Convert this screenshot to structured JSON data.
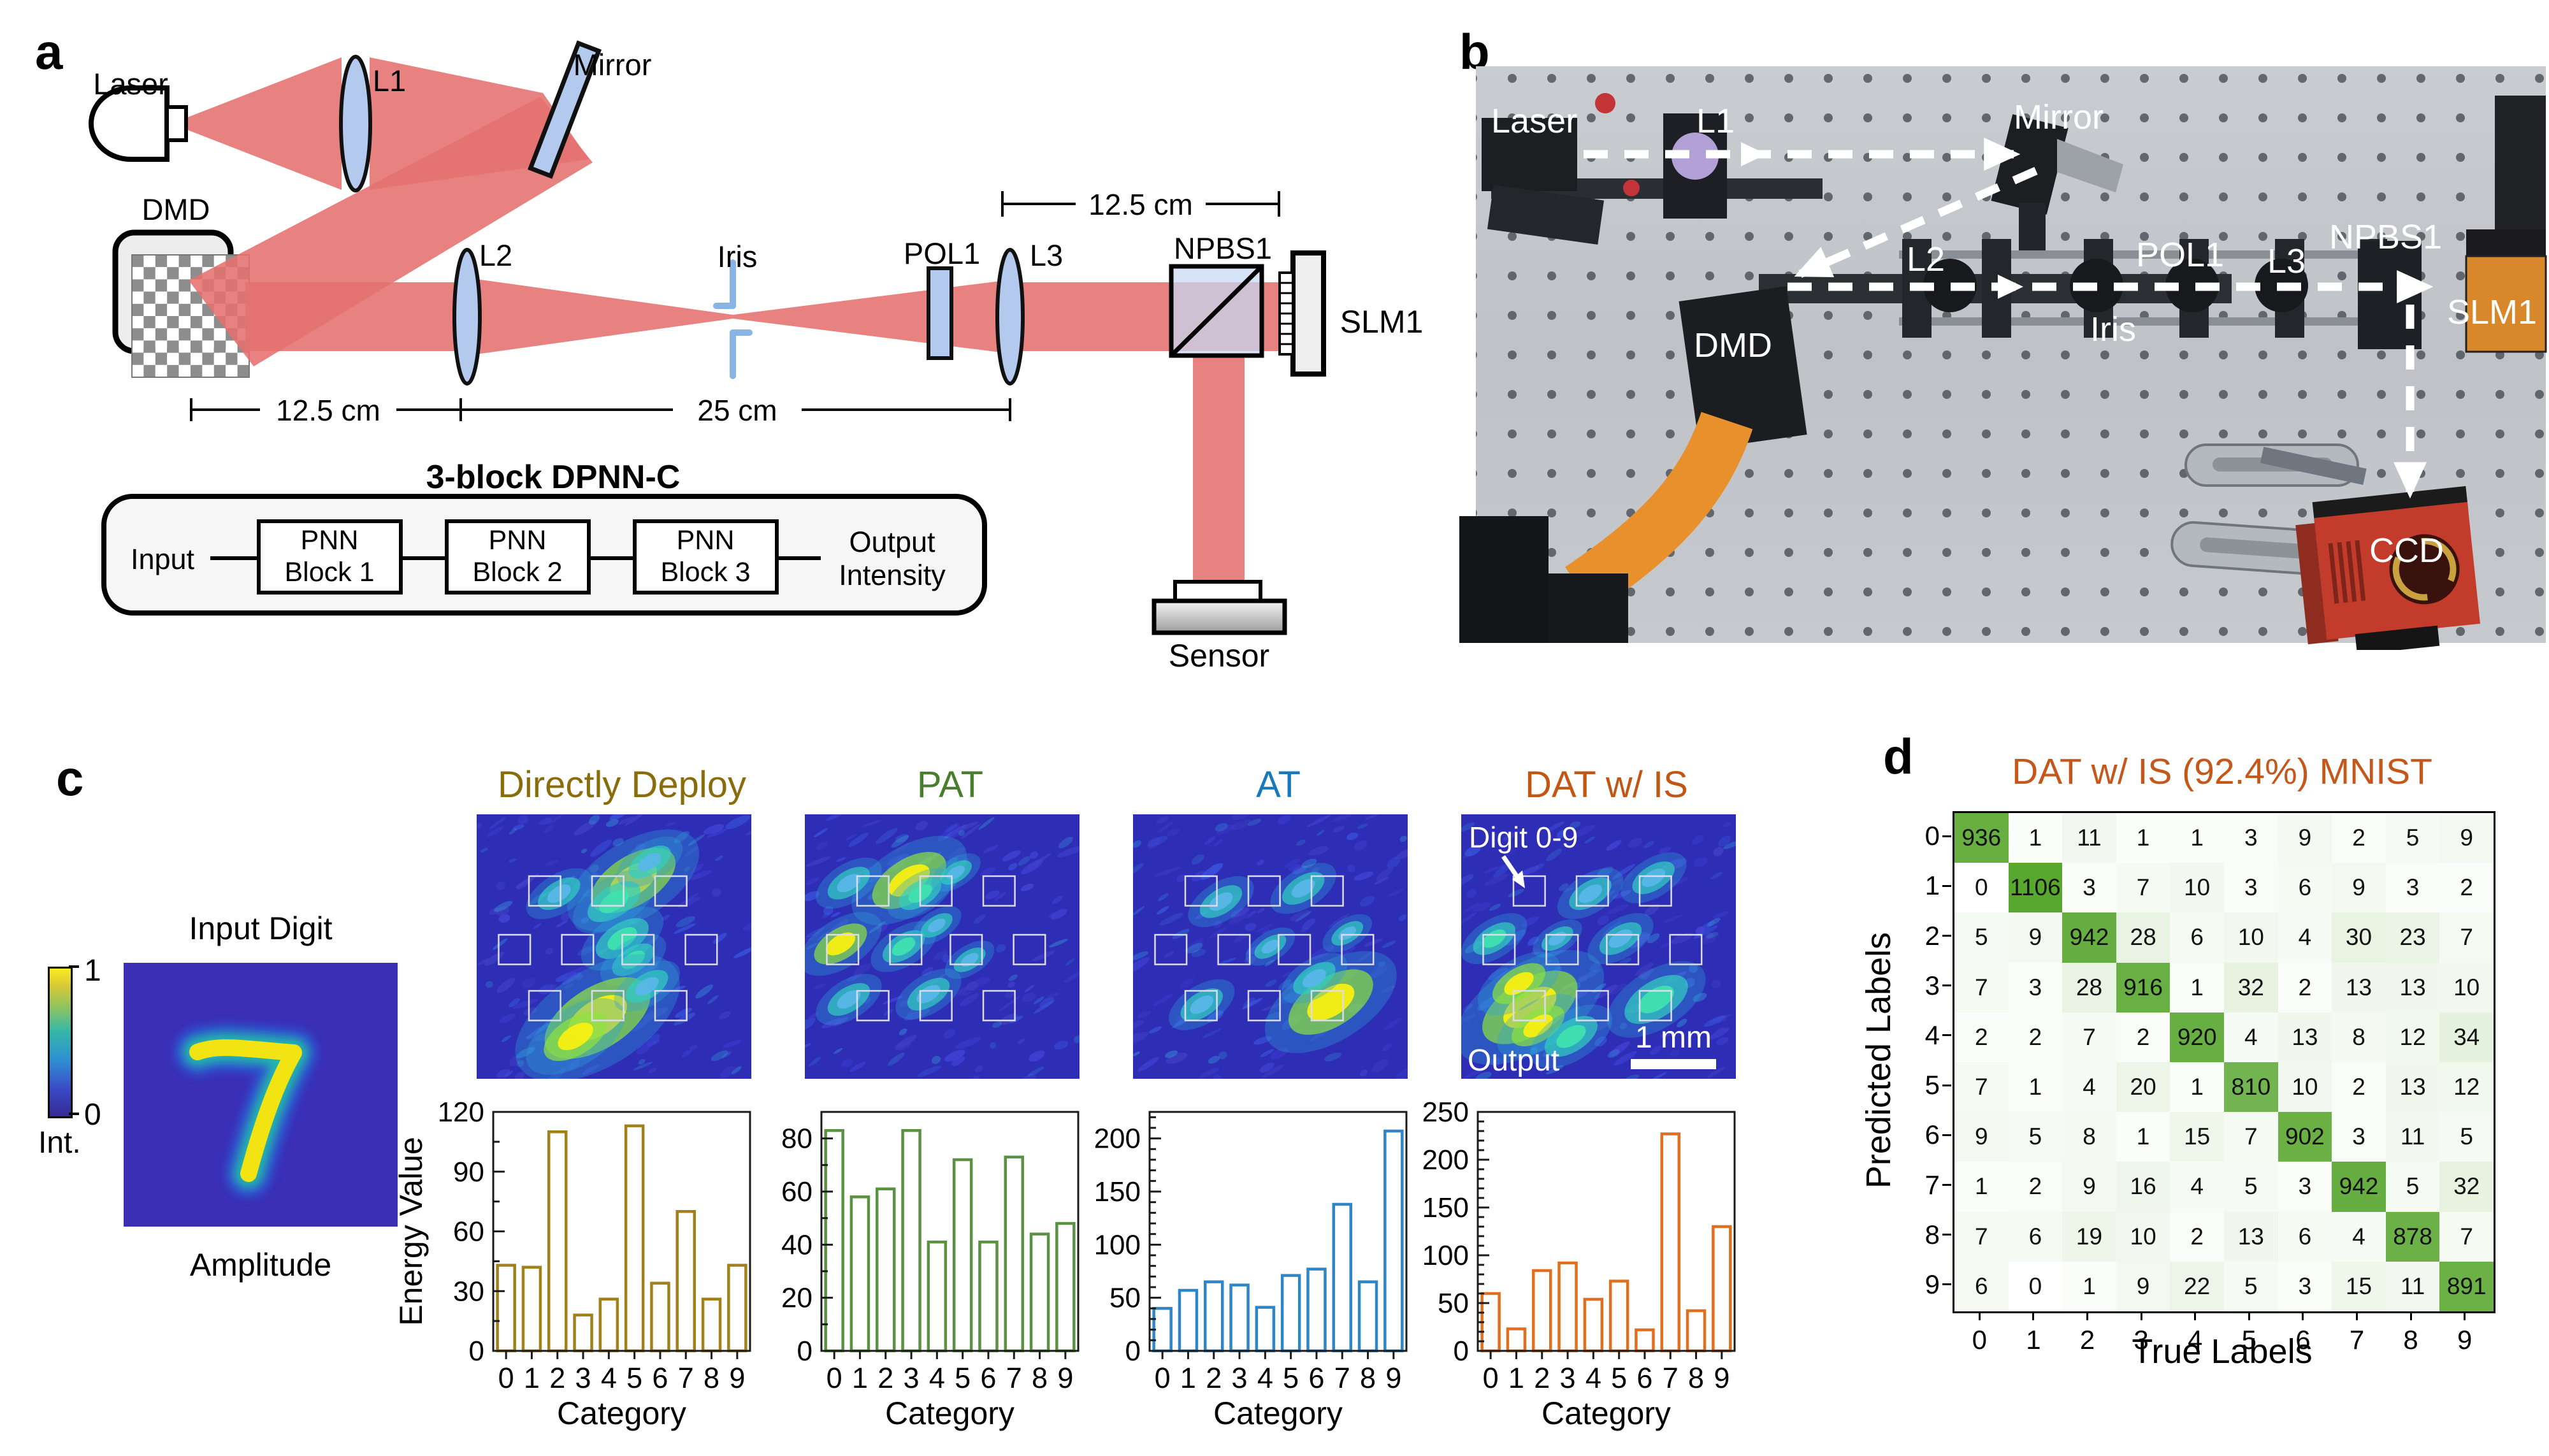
{
  "panel_a": {
    "label": "a",
    "component_labels": {
      "laser": "Laser",
      "l1": "L1",
      "mirror": "Mirror",
      "dmd": "DMD",
      "l2": "L2",
      "iris": "Iris",
      "pol1": "POL1",
      "l3": "L3",
      "npbs1": "NPBS1",
      "slm1": "SLM1",
      "sensor": "Sensor"
    },
    "dimensions": {
      "top_right": "12.5 cm",
      "bottom_left": "12.5 cm",
      "bottom_mid": "25 cm"
    },
    "dpnn": {
      "title": "3-block DPNN-C",
      "input": "Input",
      "blocks": [
        {
          "line1": "PNN",
          "line2": "Block 1"
        },
        {
          "line1": "PNN",
          "line2": "Block 2"
        },
        {
          "line1": "PNN",
          "line2": "Block 3"
        }
      ],
      "output_line1": "Output",
      "output_line2": "Intensity"
    },
    "beam_color": "#e4716f",
    "optic_fill": "#b3c9ee"
  },
  "panel_b": {
    "label": "b",
    "labels": {
      "laser": "Laser",
      "l1": "L1",
      "mirror": "Mirror",
      "l2": "L2",
      "pol1": "POL1",
      "l3": "L3",
      "npbs1": "NPBS1",
      "dmd": "DMD",
      "iris": "Iris",
      "slm1": "SLM1",
      "ccd": "CCD"
    }
  },
  "panel_c": {
    "label": "c",
    "colorbar": {
      "max": "1",
      "min": "0",
      "label": "Int."
    },
    "input": {
      "title": "Input Digit",
      "caption": "Amplitude",
      "digit": "7"
    },
    "annotations": {
      "digit_boxes": "Digit 0-9",
      "output": "Output",
      "scale_bar": "1 mm"
    }
  },
  "panel_d": {
    "label": "d"
  },
  "chart_data": [
    {
      "type": "bar",
      "id": "directly_deploy",
      "title": "Directly Deploy",
      "title_color": "#8a6d0b",
      "bar_color": "#a2801a",
      "categories": [
        "0",
        "1",
        "2",
        "3",
        "4",
        "5",
        "6",
        "7",
        "8",
        "9"
      ],
      "values": [
        43,
        42,
        110,
        18,
        26,
        113,
        34,
        70,
        26,
        43
      ],
      "xlabel": "Category",
      "ylabel": "Energy Value",
      "ylim": [
        0,
        120
      ],
      "yticks": [
        0,
        30,
        60,
        90,
        120
      ],
      "minor_step": 15,
      "speckle_hotspots": [
        {
          "x": 57,
          "y": 25,
          "r": 8,
          "i": 1
        },
        {
          "x": 50,
          "y": 33,
          "r": 5,
          "i": 0.75
        },
        {
          "x": 63,
          "y": 18,
          "r": 4,
          "i": 0.5
        },
        {
          "x": 53,
          "y": 47,
          "r": 5,
          "i": 0.7
        },
        {
          "x": 57,
          "y": 55,
          "r": 4,
          "i": 0.8
        },
        {
          "x": 44,
          "y": 77,
          "r": 10,
          "i": 1
        },
        {
          "x": 36,
          "y": 84,
          "r": 6,
          "i": 0.85
        },
        {
          "x": 30,
          "y": 30,
          "r": 4,
          "i": 0.3
        },
        {
          "x": 62,
          "y": 65,
          "r": 4,
          "i": 0.45
        }
      ]
    },
    {
      "type": "bar",
      "id": "pat",
      "title": "PAT",
      "title_color": "#4b7d2e",
      "bar_color": "#5b9142",
      "categories": [
        "0",
        "1",
        "2",
        "3",
        "4",
        "5",
        "6",
        "7",
        "8",
        "9"
      ],
      "values": [
        83,
        58,
        61,
        83,
        41,
        72,
        41,
        73,
        44,
        48
      ],
      "xlabel": "Category",
      "ylabel": "",
      "ylim": [
        0,
        90
      ],
      "yticks": [
        0,
        20,
        40,
        60,
        80
      ],
      "minor_step": 10,
      "speckle_hotspots": [
        {
          "x": 38,
          "y": 25,
          "r": 7,
          "i": 1
        },
        {
          "x": 42,
          "y": 30,
          "r": 4,
          "i": 0.7
        },
        {
          "x": 13,
          "y": 49,
          "r": 5,
          "i": 0.85
        },
        {
          "x": 36,
          "y": 50,
          "r": 4,
          "i": 0.6
        },
        {
          "x": 55,
          "y": 22,
          "r": 3,
          "i": 0.4
        },
        {
          "x": 16,
          "y": 26,
          "r": 4,
          "i": 0.45
        },
        {
          "x": 48,
          "y": 42,
          "r": 3,
          "i": 0.5
        },
        {
          "x": 16,
          "y": 70,
          "r": 4,
          "i": 0.4
        },
        {
          "x": 45,
          "y": 68,
          "r": 4,
          "i": 0.45
        },
        {
          "x": 60,
          "y": 55,
          "r": 3,
          "i": 0.35
        }
      ]
    },
    {
      "type": "bar",
      "id": "at",
      "title": "AT",
      "title_color": "#1878be",
      "bar_color": "#2e86c8",
      "categories": [
        "0",
        "1",
        "2",
        "3",
        "4",
        "5",
        "6",
        "7",
        "8",
        "9"
      ],
      "values": [
        40,
        57,
        65,
        62,
        41,
        71,
        77,
        138,
        65,
        207
      ],
      "xlabel": "Category",
      "ylabel": "",
      "ylim": [
        0,
        225
      ],
      "yticks": [
        0,
        50,
        100,
        150,
        200
      ],
      "minor_step": 10,
      "speckle_hotspots": [
        {
          "x": 72,
          "y": 71,
          "r": 8,
          "i": 0.95
        },
        {
          "x": 66,
          "y": 62,
          "r": 4,
          "i": 0.5
        },
        {
          "x": 62,
          "y": 28,
          "r": 4,
          "i": 0.4
        },
        {
          "x": 32,
          "y": 33,
          "r": 4,
          "i": 0.35
        },
        {
          "x": 25,
          "y": 72,
          "r": 4,
          "i": 0.4
        },
        {
          "x": 50,
          "y": 50,
          "r": 3,
          "i": 0.3
        },
        {
          "x": 78,
          "y": 45,
          "r": 3,
          "i": 0.3
        }
      ]
    },
    {
      "type": "bar",
      "id": "dat_is",
      "title": "DAT w/ IS",
      "title_color": "#c25715",
      "bar_color": "#e0701f",
      "categories": [
        "0",
        "1",
        "2",
        "3",
        "4",
        "5",
        "6",
        "7",
        "8",
        "9"
      ],
      "values": [
        60,
        23,
        84,
        92,
        54,
        73,
        22,
        227,
        42,
        130
      ],
      "xlabel": "Category",
      "ylabel": "",
      "ylim": [
        0,
        250
      ],
      "yticks": [
        0,
        50,
        100,
        150,
        200,
        250
      ],
      "minor_step": 10,
      "speckle_hotspots": [
        {
          "x": 25,
          "y": 73,
          "r": 9,
          "i": 1
        },
        {
          "x": 21,
          "y": 64,
          "r": 5,
          "i": 0.95
        },
        {
          "x": 28,
          "y": 80,
          "r": 5,
          "i": 0.9
        },
        {
          "x": 71,
          "y": 70,
          "r": 6,
          "i": 0.8
        },
        {
          "x": 12,
          "y": 47,
          "r": 4,
          "i": 0.75
        },
        {
          "x": 47,
          "y": 30,
          "r": 4,
          "i": 0.5
        },
        {
          "x": 70,
          "y": 24,
          "r": 4,
          "i": 0.5
        },
        {
          "x": 40,
          "y": 84,
          "r": 5,
          "i": 0.55
        },
        {
          "x": 58,
          "y": 47,
          "r": 4,
          "i": 0.5
        },
        {
          "x": 35,
          "y": 47,
          "r": 3,
          "i": 0.45
        }
      ]
    },
    {
      "type": "heatmap",
      "id": "confusion_matrix",
      "title": "DAT w/ IS (92.4%) MNIST",
      "title_color": "#c5571a",
      "xlabel": "True Labels",
      "ylabel": "Predicted Labels",
      "row_labels": [
        "0",
        "1",
        "2",
        "3",
        "4",
        "5",
        "6",
        "7",
        "8",
        "9"
      ],
      "col_labels": [
        "0",
        "1",
        "2",
        "3",
        "4",
        "5",
        "6",
        "7",
        "8",
        "9"
      ],
      "matrix": [
        [
          936,
          1,
          11,
          1,
          1,
          3,
          9,
          2,
          5,
          9
        ],
        [
          0,
          1106,
          3,
          7,
          10,
          3,
          6,
          9,
          3,
          2
        ],
        [
          5,
          9,
          942,
          28,
          6,
          10,
          4,
          30,
          23,
          7
        ],
        [
          7,
          3,
          28,
          916,
          1,
          32,
          2,
          13,
          13,
          10
        ],
        [
          2,
          2,
          7,
          2,
          920,
          4,
          13,
          8,
          12,
          34
        ],
        [
          7,
          1,
          4,
          20,
          1,
          810,
          10,
          2,
          13,
          12
        ],
        [
          9,
          5,
          8,
          1,
          15,
          7,
          902,
          3,
          11,
          5
        ],
        [
          1,
          2,
          9,
          16,
          4,
          5,
          3,
          942,
          5,
          32
        ],
        [
          7,
          6,
          19,
          10,
          2,
          13,
          6,
          4,
          878,
          7
        ],
        [
          6,
          0,
          1,
          9,
          22,
          5,
          3,
          15,
          11,
          891
        ]
      ],
      "color_low": "#ffffff",
      "color_high": "#58a72f"
    }
  ]
}
